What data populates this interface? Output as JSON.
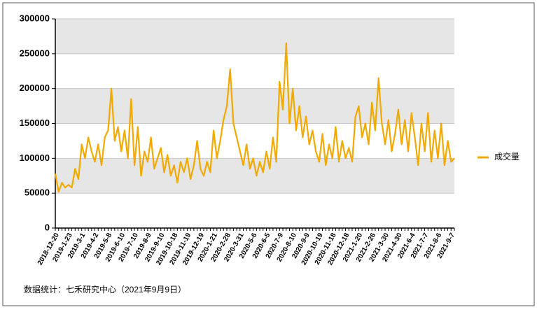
{
  "chart_data": {
    "type": "line",
    "categories": [
      "2018-12-20",
      null,
      null,
      null,
      "2019-1-23",
      null,
      null,
      null,
      "2019-3-1",
      null,
      null,
      null,
      "2019-4-2",
      null,
      null,
      null,
      "2019-5-8",
      null,
      null,
      null,
      "2019-6-10",
      null,
      null,
      null,
      "2019-7-10",
      null,
      null,
      null,
      "2019-8-9",
      null,
      null,
      null,
      "2019-9-10",
      null,
      null,
      null,
      "2019-10-18",
      null,
      null,
      null,
      "2019-11-19",
      null,
      null,
      null,
      "2019-12-19",
      null,
      null,
      null,
      "2020-1-21",
      null,
      null,
      null,
      "2020-2-28",
      null,
      null,
      null,
      "2020-3-31",
      null,
      null,
      null,
      "2020-5-6",
      null,
      null,
      null,
      "2020-6-5",
      null,
      null,
      null,
      "2020-7-9",
      null,
      null,
      null,
      "2020-8-10",
      null,
      null,
      null,
      "2020-9-9",
      null,
      null,
      null,
      "2020-10-19",
      null,
      null,
      null,
      "2020-11-18",
      null,
      null,
      null,
      "2020-12-18",
      null,
      null,
      null,
      "2021-1-20",
      null,
      null,
      null,
      "2021-2-26",
      null,
      null,
      null,
      "2021-3-30",
      null,
      null,
      null,
      "2021-4-30",
      null,
      null,
      null,
      "2021-6-4",
      null,
      null,
      null,
      "2021-7-7",
      null,
      null,
      null,
      "2021-8-6",
      null,
      null,
      null,
      "2021-9-7",
      null
    ],
    "series": [
      {
        "name": "成交量",
        "color": "#f2a900",
        "values": [
          78000,
          52000,
          65000,
          58000,
          62000,
          58000,
          85000,
          70000,
          120000,
          100000,
          130000,
          110000,
          95000,
          120000,
          90000,
          130000,
          140000,
          200000,
          125000,
          145000,
          110000,
          140000,
          100000,
          185000,
          90000,
          145000,
          75000,
          110000,
          95000,
          130000,
          85000,
          100000,
          115000,
          80000,
          105000,
          75000,
          90000,
          65000,
          95000,
          80000,
          100000,
          70000,
          90000,
          125000,
          85000,
          75000,
          95000,
          80000,
          140000,
          100000,
          125000,
          155000,
          175000,
          228000,
          150000,
          130000,
          110000,
          90000,
          120000,
          85000,
          100000,
          75000,
          95000,
          80000,
          110000,
          85000,
          130000,
          95000,
          210000,
          170000,
          265000,
          150000,
          200000,
          140000,
          175000,
          130000,
          160000,
          120000,
          140000,
          110000,
          95000,
          135000,
          90000,
          120000,
          100000,
          145000,
          95000,
          125000,
          100000,
          115000,
          95000,
          160000,
          175000,
          130000,
          150000,
          120000,
          180000,
          140000,
          215000,
          150000,
          120000,
          155000,
          110000,
          135000,
          170000,
          120000,
          155000,
          110000,
          165000,
          130000,
          90000,
          150000,
          110000,
          165000,
          95000,
          140000,
          100000,
          150000,
          90000,
          125000,
          95000,
          100000
        ]
      }
    ],
    "ylim": [
      0,
      300000
    ],
    "yticks": [
      0,
      50000,
      100000,
      150000,
      200000,
      250000,
      300000
    ],
    "grid": true,
    "legend": "right",
    "note": "数据统计：七禾研究中心（2021年9月9日）"
  }
}
